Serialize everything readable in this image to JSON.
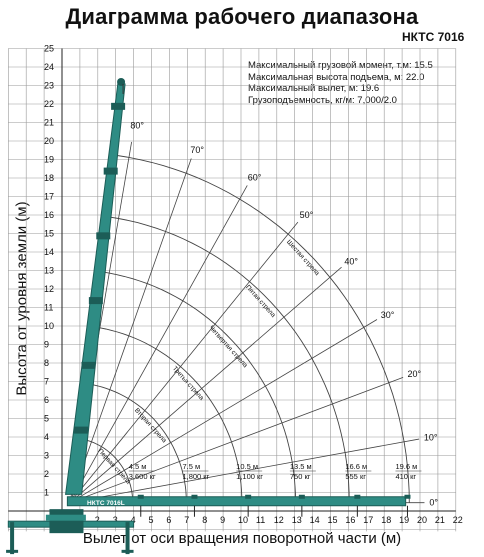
{
  "header": {
    "title": "Диаграмма рабочего диапазона",
    "model": "НКТС 7016"
  },
  "specs": [
    "Максимальный грузовой момент, т.м: 15.5",
    "Максимальная высота подъема, м: 22.0",
    "Максимальный вылет, м: 19.6",
    "Грузоподъемность, кг/м: 7,000/2.0"
  ],
  "axes": {
    "ylabel": "Высота от уровня земли (м)",
    "xlabel": "Вылет от оси вращения поворотной части (м)",
    "xticks": [
      "0",
      "1",
      "2",
      "3",
      "4",
      "5",
      "6",
      "7",
      "8",
      "9",
      "10",
      "11",
      "12",
      "13",
      "14",
      "15",
      "16",
      "17",
      "18",
      "19",
      "20",
      "21",
      "22"
    ],
    "yticks": [
      "1",
      "2",
      "3",
      "4",
      "5",
      "6",
      "7",
      "8",
      "9",
      "10",
      "11",
      "12",
      "13",
      "14",
      "15",
      "16",
      "17",
      "18",
      "19",
      "20",
      "21",
      "22",
      "23",
      "24",
      "25"
    ]
  },
  "angles": [
    "80°",
    "70°",
    "60°",
    "50°",
    "40°",
    "30°",
    "20°",
    "10°",
    "0°"
  ],
  "boom_sections": [
    "Первая стрела",
    "Вторая стрела",
    "Третья стрела",
    "Четвертая стрела",
    "Пятая стрела",
    "Шестая стрела"
  ],
  "boom_label": "НКТС 7016L",
  "loads": [
    {
      "reach": "4.5 м",
      "load": "3,600 кг"
    },
    {
      "reach": "7.5 м",
      "load": "1,800 кг"
    },
    {
      "reach": "10.5 м",
      "load": "1,100 кг"
    },
    {
      "reach": "13.5 м",
      "load": "750 кг"
    },
    {
      "reach": "16.6 м",
      "load": "555 кг"
    },
    {
      "reach": "19.6 м",
      "load": "410 кг"
    }
  ],
  "colors": {
    "boom": "#2e8c84",
    "boom_dark": "#1c5d57",
    "grid": "#9a9a9a",
    "arc": "#444444"
  }
}
